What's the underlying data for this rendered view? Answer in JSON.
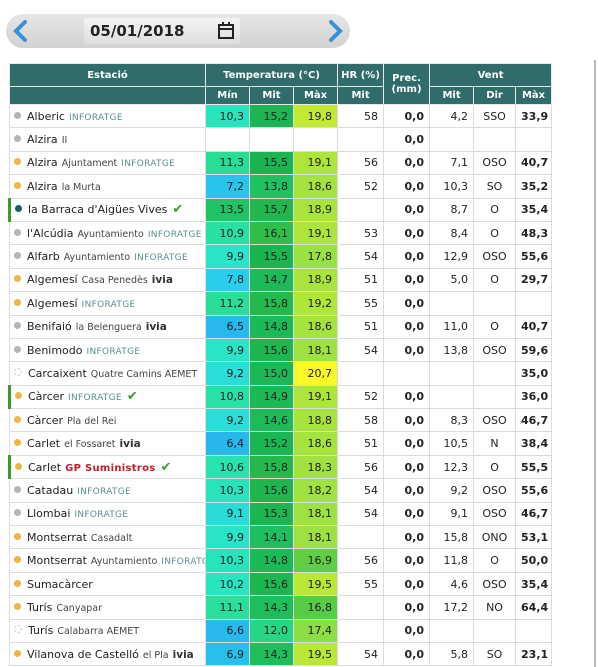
{
  "header": {
    "date": "05/01/2018"
  },
  "table": {
    "groups": [
      "Estació",
      "Temperatura (°C)",
      "HR (%)",
      "Prec. (mm)",
      "Vent"
    ],
    "subheaders": [
      "Mín",
      "Mit",
      "Màx",
      "Mit",
      "Mit",
      "Dir",
      "Màx"
    ],
    "rows": [
      {
        "name": "Alberic",
        "brand": "INFORATGE",
        "dot": "#b5b5b5",
        "values": [
          "10,3",
          "15,2",
          "19,8",
          "58",
          "0,0",
          "4,2",
          "SSO",
          "33,9"
        ]
      },
      {
        "name": "Alzira",
        "detail": "II",
        "dot": "#b5b5b5",
        "values": [
          null,
          null,
          null,
          null,
          "0,0",
          null,
          null,
          null
        ]
      },
      {
        "name": "Alzira",
        "detail": "Ajuntament",
        "brand": "INFORATGE",
        "dot": "#f0b440",
        "values": [
          "11,3",
          "15,5",
          "19,1",
          "56",
          "0,0",
          "7,1",
          "OSO",
          "40,7"
        ]
      },
      {
        "name": "Alzira",
        "detail": "la Murta",
        "dot": "#f0b440",
        "values": [
          "7,2",
          "13,8",
          "18,6",
          "52",
          "0,0",
          "10,3",
          "SO",
          "35,2"
        ]
      },
      {
        "name": "la Barraca d'Aigües Vives",
        "dot": "#1a5e5e",
        "check": true,
        "values": [
          "13,5",
          "15,7",
          "18,9",
          null,
          "0,0",
          "8,7",
          "O",
          "35,4"
        ]
      },
      {
        "name": "l'Alcúdia",
        "detail": "Ayuntamiento",
        "brand": "INFORATGE",
        "dot": "#b5b5b5",
        "values": [
          "10,9",
          "16,1",
          "19,1",
          "53",
          "0,0",
          "8,4",
          "O",
          "48,3"
        ]
      },
      {
        "name": "Alfarb",
        "detail": "Ayuntamiento",
        "brand": "INFORATGE",
        "dot": "#b5b5b5",
        "values": [
          "9,9",
          "15,5",
          "17,8",
          "54",
          "0,0",
          "12,9",
          "OSO",
          "55,6"
        ]
      },
      {
        "name": "Algemesí",
        "detail": "Casa Penedès",
        "brand": "ivia",
        "dot": "#f0b440",
        "values": [
          "7,8",
          "14,7",
          "18,9",
          "51",
          "0,0",
          "5,0",
          "O",
          "29,7"
        ]
      },
      {
        "name": "Algemesí",
        "brand": "INFORATGE",
        "dot": "#f0b440",
        "values": [
          "11,2",
          "15,8",
          "19,2",
          "55",
          "0,0",
          null,
          null,
          null
        ]
      },
      {
        "name": "Benifaió",
        "detail": "la Belenguera",
        "brand": "ivia",
        "dot": "#b5b5b5",
        "values": [
          "6,5",
          "14,8",
          "18,6",
          "51",
          "0,0",
          "11,0",
          "O",
          "40,7"
        ]
      },
      {
        "name": "Benimodo",
        "brand": "INFORATGE",
        "dot": "#b5b5b5",
        "values": [
          "9,9",
          "15,6",
          "18,1",
          "54",
          "0,0",
          "13,8",
          "OSO",
          "59,6"
        ]
      },
      {
        "name": "Carcaixent",
        "detail": "Quatre Camins AEMET",
        "dot": "#cccccc",
        "dashed": true,
        "values": [
          "9,2",
          "15,0",
          "20,7",
          null,
          null,
          null,
          null,
          "35,0"
        ]
      },
      {
        "name": "Càrcer",
        "brand": "INFORATGE",
        "dot": "#f0b440",
        "check": true,
        "values": [
          "10,8",
          "14,9",
          "19,1",
          "52",
          "0,0",
          null,
          null,
          "36,0"
        ]
      },
      {
        "name": "Càrcer",
        "detail": "Pla del Rei",
        "dot": "#f0b440",
        "values": [
          "9,2",
          "14,6",
          "18,8",
          "58",
          "0,0",
          "8,3",
          "OSO",
          "46,7"
        ]
      },
      {
        "name": "Carlet",
        "detail": "el Fossaret",
        "brand": "ivia",
        "dot": "#f0b440",
        "values": [
          "6,4",
          "15,2",
          "18,6",
          "51",
          "0,0",
          "10,5",
          "N",
          "38,4"
        ]
      },
      {
        "name": "Carlet",
        "brand": "GP Suministros",
        "dot": "#f0b440",
        "check": true,
        "values": [
          "10,6",
          "15,8",
          "18,3",
          "56",
          "0,0",
          "12,3",
          "O",
          "55,5"
        ]
      },
      {
        "name": "Catadau",
        "brand": "INFORATGE",
        "dot": "#b5b5b5",
        "values": [
          "10,3",
          "15,6",
          "18,2",
          "54",
          "0,0",
          "9,2",
          "OSO",
          "55,6"
        ]
      },
      {
        "name": "Llombai",
        "brand": "INFORATGE",
        "dot": "#b5b5b5",
        "values": [
          "9,1",
          "15,3",
          "18,1",
          "54",
          "0,0",
          "9,1",
          "OSO",
          "46,7"
        ]
      },
      {
        "name": "Montserrat",
        "detail": "Casadalt",
        "dot": "#f0b440",
        "values": [
          "9,9",
          "14,1",
          "18,1",
          null,
          "0,0",
          "15,8",
          "ONO",
          "53,1"
        ]
      },
      {
        "name": "Montserrat",
        "detail": "Ayuntamiento",
        "brand": "INFORATGE",
        "dot": "#f0b440",
        "values": [
          "10,3",
          "14,8",
          "16,9",
          "56",
          "0,0",
          "11,8",
          "O",
          "50,0"
        ]
      },
      {
        "name": "Sumacàrcer",
        "dot": "#f0b440",
        "values": [
          "10,2",
          "15,6",
          "19,5",
          "55",
          "0,0",
          "4,6",
          "OSO",
          "35,4"
        ]
      },
      {
        "name": "Turís",
        "detail": "Canyapar",
        "dot": "#f0b440",
        "values": [
          "11,1",
          "14,3",
          "16,8",
          null,
          "0,0",
          "17,2",
          "NO",
          "64,4"
        ]
      },
      {
        "name": "Turís",
        "detail": "Calabarra AEMET",
        "dot": "#cccccc",
        "dashed": true,
        "values": [
          "6,6",
          "12,0",
          "17,4",
          null,
          "0,0",
          null,
          null,
          null
        ]
      },
      {
        "name": "Vilanova de Castelló",
        "detail": "el Pla",
        "brand": "ivia",
        "dot": "#f0b440",
        "values": [
          "6,9",
          "14,3",
          "19,5",
          "54",
          "0,0",
          "5,8",
          "SO",
          "23,1"
        ]
      }
    ]
  }
}
